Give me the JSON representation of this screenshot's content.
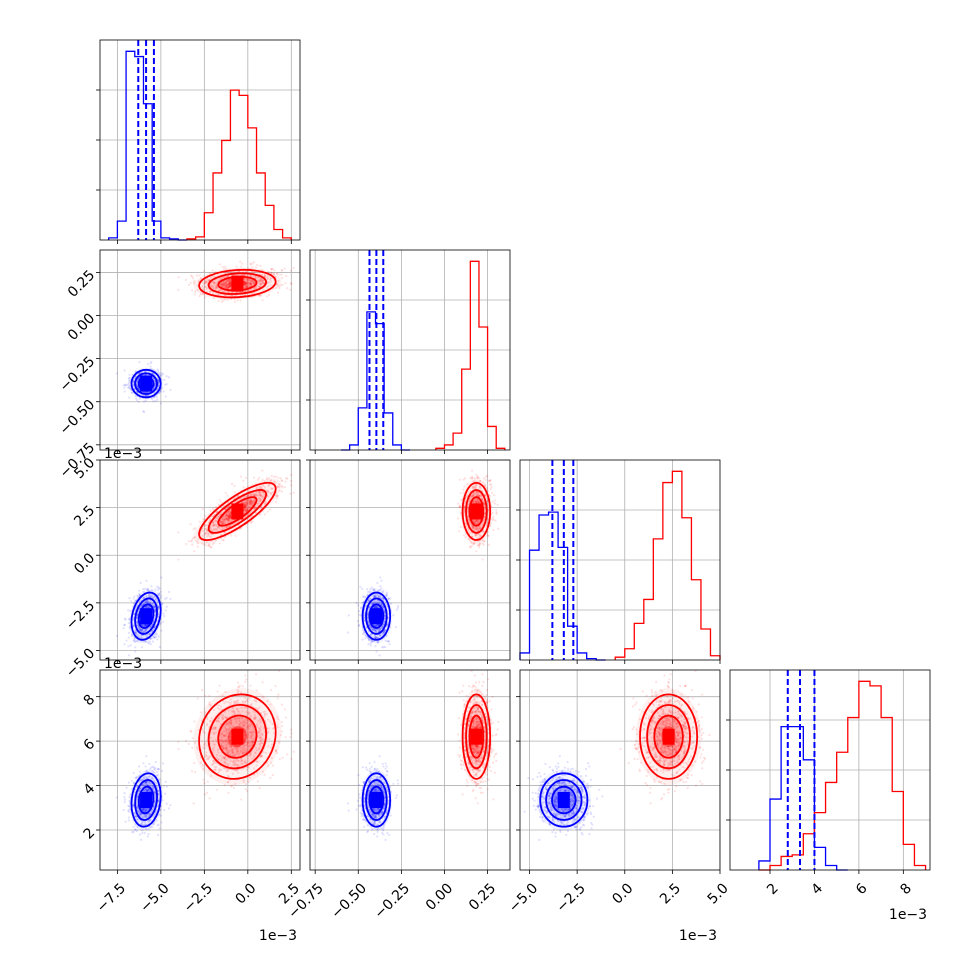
{
  "chart_data": {
    "type": "corner",
    "colors": {
      "blue": "#0000ff",
      "red": "#ff0000",
      "grid": "#b0b0b0",
      "axis": "#000000"
    },
    "parameters": [
      {
        "range": [
          -8.5,
          3.0
        ],
        "ticks": [
          -7.5,
          -5.0,
          -2.5,
          0.0,
          2.5
        ],
        "tick_labels": [
          "−7.5",
          "−5.0",
          "−2.5",
          "0.0",
          "2.5"
        ],
        "offset": "1e−3"
      },
      {
        "range": [
          -0.78,
          0.38
        ],
        "ticks": [
          -0.75,
          -0.5,
          -0.25,
          0.0,
          0.25
        ],
        "tick_labels": [
          "−0.75",
          "−0.50",
          "−0.25",
          "0.00",
          "0.25"
        ],
        "offset": ""
      },
      {
        "range": [
          -5.5,
          5.0
        ],
        "ticks": [
          -5.0,
          -2.5,
          0.0,
          2.5,
          5.0
        ],
        "tick_labels": [
          "−5.0",
          "−2.5",
          "0.0",
          "2.5",
          "5.0"
        ],
        "offset": "1e−3"
      },
      {
        "range": [
          0.2,
          9.2
        ],
        "ticks": [
          2,
          4,
          6,
          8
        ],
        "tick_labels": [
          "2",
          "4",
          "6",
          "8"
        ],
        "offset": "1e−3"
      }
    ],
    "histograms": [
      {
        "blue": {
          "bins": [
            -8.0,
            -7.5,
            -7.0,
            -6.5,
            -6.0,
            -5.5,
            -5.0,
            -4.5,
            -4.0,
            -3.5
          ],
          "counts": [
            2,
            18,
            180,
            175,
            130,
            18,
            2,
            1,
            0
          ]
        },
        "red": {
          "bins": [
            -3.5,
            -3.0,
            -2.5,
            -2.0,
            -1.5,
            -1.0,
            -0.5,
            0.0,
            0.5,
            1.0,
            1.5,
            2.0,
            2.5
          ],
          "counts": [
            1,
            3,
            26,
            64,
            95,
            143,
            138,
            107,
            64,
            33,
            10,
            2
          ]
        },
        "blue_quantiles": [
          -6.3,
          -5.85,
          -5.4
        ]
      },
      {
        "blue": {
          "bins": [
            -0.6,
            -0.55,
            -0.5,
            -0.45,
            -0.4,
            -0.35,
            -0.3,
            -0.25,
            -0.2
          ],
          "counts": [
            0,
            3,
            25,
            82,
            75,
            22,
            3,
            0
          ]
        },
        "red": {
          "bins": [
            -0.05,
            0.0,
            0.05,
            0.1,
            0.15,
            0.2,
            0.25,
            0.3,
            0.35
          ],
          "counts": [
            1,
            3,
            10,
            48,
            112,
            73,
            14,
            1
          ]
        },
        "blue_quantiles": [
          -0.435,
          -0.395,
          -0.355
        ]
      },
      {
        "blue": {
          "bins": [
            -5.5,
            -5.0,
            -4.5,
            -4.0,
            -3.5,
            -3.0,
            -2.5,
            -2.0,
            -1.5,
            -1.0
          ],
          "counts": [
            5,
            78,
            103,
            105,
            80,
            24,
            5,
            1,
            0
          ]
        },
        "red": {
          "bins": [
            -0.5,
            0.0,
            0.5,
            1.0,
            1.5,
            2.0,
            2.5,
            3.0,
            3.5,
            4.0,
            4.5,
            5.0
          ],
          "counts": [
            2,
            8,
            26,
            43,
            86,
            126,
            134,
            101,
            57,
            22,
            3
          ]
        },
        "blue_quantiles": [
          -3.8,
          -3.2,
          -2.7
        ]
      },
      {
        "blue": {
          "bins": [
            1.5,
            2.0,
            2.5,
            3.0,
            3.5,
            4.0,
            4.5,
            5.0,
            5.5
          ],
          "counts": [
            6,
            47,
            95,
            95,
            73,
            15,
            3,
            0
          ]
        },
        "red": {
          "bins": [
            1.5,
            2.0,
            2.5,
            3.0,
            3.5,
            4.0,
            4.5,
            5.0,
            5.5,
            6.0,
            6.5,
            7.0,
            7.5,
            8.0,
            8.5,
            9.0
          ],
          "counts": [
            0,
            3,
            9,
            10,
            24,
            38,
            58,
            78,
            101,
            125,
            122,
            101,
            52,
            17,
            3
          ]
        },
        "blue_quantiles": [
          2.8,
          3.35,
          4.0
        ]
      }
    ],
    "clusters": {
      "blue": {
        "mean": [
          -5.85,
          -0.395,
          -3.2,
          3.35
        ],
        "sd": [
          0.42,
          0.04,
          0.62,
          0.6
        ]
      },
      "red": {
        "mean": [
          -0.6,
          0.185,
          2.3,
          6.2
        ],
        "sd": [
          1.1,
          0.04,
          0.75,
          0.95
        ]
      }
    }
  }
}
